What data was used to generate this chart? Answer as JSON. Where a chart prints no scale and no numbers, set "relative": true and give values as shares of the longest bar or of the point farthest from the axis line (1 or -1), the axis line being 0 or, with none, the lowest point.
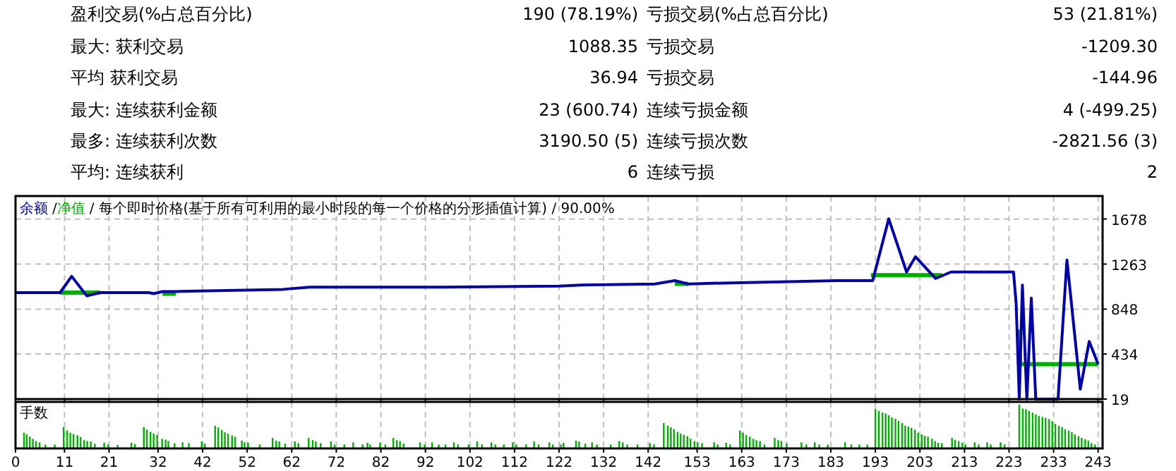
{
  "chart_data": [
    {
      "type": "other",
      "annotations": [
        "盈利交易(%占总百分比)",
        "190 (78.19%)",
        "亏损交易(%占总百分比)",
        "53 (21.81%)",
        "最大: 获利交易",
        "1088.35",
        "亏损交易",
        "-1209.30",
        "平均 获利交易",
        "36.94",
        "亏损交易",
        "-144.96",
        "最大: 连续获利金额",
        "23 (600.74)",
        "连续亏损金额",
        "4 (-499.25)",
        "最多: 连续获利次数",
        "3190.50 (5)",
        "连续亏损次数",
        "-2821.56 (3)",
        "平均: 连续获利",
        "6",
        "连续亏损",
        "2"
      ]
    },
    {
      "type": "line",
      "title": "每个即时价格(基于所有可利用的最小时段的每一个价格的分形插值计算) / 90.00%",
      "legend": "top left",
      "grid": true,
      "tick_labels": "y",
      "xlim": [
        0,
        244
      ],
      "xticks": [
        0,
        11,
        21,
        32,
        42,
        52,
        62,
        72,
        82,
        92,
        102,
        112,
        122,
        132,
        142,
        153,
        163,
        173,
        183,
        193,
        203,
        213,
        223,
        233,
        243
      ],
      "ylim": [
        19,
        1890
      ],
      "yticks": [
        19,
        434,
        848,
        1263,
        1678
      ],
      "annotations": [
        "/",
        "/"
      ],
      "series": [
        {
          "name": "余额",
          "color": "#0000a8",
          "x": [
            0,
            10,
            12.6,
            16,
            19,
            30,
            31,
            33,
            36,
            60,
            66,
            96,
            122,
            127,
            143.5,
            148,
            151,
            160.6,
            184.5,
            192.4,
            196,
            200,
            202,
            206.5,
            210,
            224,
            224.6,
            225.3,
            226,
            227,
            228,
            229,
            234,
            236,
            239,
            241,
            243
          ],
          "values": [
            1000,
            1000,
            1150,
            970,
            1000,
            1000,
            990,
            1010,
            1010,
            1030,
            1050,
            1050,
            1060,
            1070,
            1080,
            1110,
            1080,
            1090,
            1110,
            1110,
            1680,
            1190,
            1330,
            1130,
            1190,
            1190,
            900,
            19,
            1070,
            19,
            950,
            19,
            19,
            1300,
            110,
            550,
            340
          ]
        },
        {
          "name": "净值",
          "color": "#00b000",
          "x": [
            10,
            19
          ],
          "values": [
            1000,
            1000
          ]
        },
        {
          "color": "#00b000",
          "x": [
            33,
            36
          ],
          "values": [
            990,
            990
          ]
        },
        {
          "color": "#00b000",
          "x": [
            148,
            151
          ],
          "values": [
            1080,
            1080
          ]
        },
        {
          "color": "#00b000",
          "x": [
            192,
            208
          ],
          "values": [
            1160,
            1160
          ]
        },
        {
          "color": "#00b000",
          "x": [
            225,
            225.5,
            243
          ],
          "values": [
            660,
            340,
            340
          ]
        }
      ]
    },
    {
      "type": "bar",
      "title": "手数",
      "relative": true,
      "grid": "x",
      "tick_labels": "x",
      "color": "#00b000",
      "xlim": [
        0,
        244
      ],
      "xticks": [
        0,
        11,
        21,
        32,
        42,
        52,
        62,
        72,
        82,
        92,
        102,
        112,
        122,
        132,
        142,
        153,
        163,
        173,
        183,
        193,
        203,
        213,
        223,
        233,
        243
      ],
      "x": [
        1.9,
        2.5,
        3.2,
        3.9,
        4.6,
        5.4,
        6.7,
        8.8,
        10.8,
        11.6,
        12.3,
        13.0,
        13.9,
        14.6,
        15.4,
        16.1,
        16.9,
        17.8,
        19.9,
        20.8,
        22.9,
        26.0,
        26.8,
        28.8,
        29.5,
        30.3,
        31.0,
        31.8,
        32.9,
        33.7,
        34.3,
        35.7,
        37.5,
        38.9,
        41.8,
        42.5,
        44.8,
        45.5,
        46.3,
        47.0,
        47.7,
        48.6,
        49.3,
        50.8,
        51.4,
        52.2,
        54.8,
        57.7,
        58.5,
        59.2,
        60.5,
        62.7,
        63.5,
        65.8,
        66.7,
        67.4,
        68.5,
        70.8,
        71.6,
        73.8,
        75.8,
        77.9,
        79.0,
        79.6,
        81.8,
        83.0,
        84.8,
        85.6,
        86.3,
        87.1,
        90.8,
        91.8,
        93.5,
        95.0,
        96.5,
        98.4,
        99.3,
        101.7,
        103.6,
        104.7,
        106.8,
        107.7,
        109.6,
        111.6,
        112.4,
        114.6,
        116.4,
        117.4,
        119.8,
        120.6,
        122.4,
        123.0,
        125.8,
        126.5,
        127.9,
        129.4,
        130.5,
        133.6,
        135.5,
        136.3,
        137.3,
        139.6,
        142.4,
        143.3,
        145.5,
        146.4,
        147.1,
        147.8,
        148.6,
        149.3,
        150.0,
        150.8,
        151.5,
        152.4,
        153.1,
        154.1,
        156.8,
        157.6,
        159.5,
        160.4,
        162.6,
        163.3,
        164.0,
        164.8,
        165.6,
        166.3,
        167.1,
        168.1,
        170.4,
        171.2,
        171.9,
        173.1,
        176.4,
        177.5,
        179.4,
        180.4,
        182.3,
        186.2,
        187.6,
        189.4,
        191.2,
        193.0,
        193.8,
        194.6,
        195.3,
        196.0,
        196.7,
        197.5,
        198.2,
        199.0,
        199.7,
        200.4,
        201.1,
        201.9,
        202.6,
        203.4,
        204.1,
        204.8,
        205.7,
        206.4,
        207.1,
        207.9,
        210.2,
        210.9,
        211.7,
        212.5,
        213.2,
        215.3,
        216.2,
        218.1,
        218.9,
        221.1,
        222.0,
        225.3,
        226.1,
        226.8,
        227.5,
        228.3,
        229.0,
        229.7,
        230.5,
        231.2,
        232.0,
        232.7,
        233.4,
        234.2,
        234.9,
        235.6,
        236.4,
        237.1,
        237.8,
        238.6,
        239.3,
        240.1,
        240.8,
        241.5,
        242.3
      ],
      "values": [
        0.36,
        0.32,
        0.27,
        0.22,
        0.17,
        0.14,
        0.09,
        0.09,
        0.49,
        0.41,
        0.36,
        0.33,
        0.3,
        0.26,
        0.19,
        0.17,
        0.16,
        0.11,
        0.13,
        0.09,
        0.08,
        0.13,
        0.1,
        0.49,
        0.43,
        0.38,
        0.34,
        0.31,
        0.22,
        0.2,
        0.17,
        0.12,
        0.14,
        0.12,
        0.16,
        0.11,
        0.52,
        0.48,
        0.42,
        0.37,
        0.34,
        0.3,
        0.27,
        0.18,
        0.14,
        0.13,
        0.09,
        0.24,
        0.18,
        0.16,
        0.11,
        0.16,
        0.12,
        0.24,
        0.19,
        0.16,
        0.12,
        0.16,
        0.09,
        0.09,
        0.14,
        0.09,
        0.13,
        0.09,
        0.13,
        0.09,
        0.24,
        0.19,
        0.17,
        0.11,
        0.14,
        0.09,
        0.14,
        0.09,
        0.09,
        0.14,
        0.09,
        0.09,
        0.16,
        0.09,
        0.14,
        0.09,
        0.09,
        0.14,
        0.09,
        0.09,
        0.16,
        0.09,
        0.14,
        0.09,
        0.09,
        0.13,
        0.18,
        0.16,
        0.11,
        0.14,
        0.09,
        0.09,
        0.17,
        0.14,
        0.09,
        0.09,
        0.12,
        0.09,
        0.58,
        0.52,
        0.48,
        0.44,
        0.38,
        0.34,
        0.31,
        0.28,
        0.22,
        0.17,
        0.14,
        0.12,
        0.14,
        0.09,
        0.13,
        0.09,
        0.41,
        0.36,
        0.31,
        0.27,
        0.22,
        0.19,
        0.17,
        0.09,
        0.24,
        0.19,
        0.17,
        0.11,
        0.14,
        0.09,
        0.14,
        0.09,
        0.09,
        0.14,
        0.09,
        0.09,
        0.09,
        0.91,
        0.86,
        0.82,
        0.8,
        0.76,
        0.71,
        0.68,
        0.63,
        0.58,
        0.52,
        0.5,
        0.47,
        0.43,
        0.36,
        0.32,
        0.29,
        0.27,
        0.22,
        0.17,
        0.13,
        0.12,
        0.24,
        0.2,
        0.17,
        0.13,
        0.09,
        0.14,
        0.09,
        0.14,
        0.09,
        0.14,
        0.09,
        1,
        0.91,
        0.9,
        0.86,
        0.82,
        0.78,
        0.74,
        0.72,
        0.7,
        0.67,
        0.62,
        0.56,
        0.52,
        0.49,
        0.44,
        0.41,
        0.37,
        0.32,
        0.28,
        0.24,
        0.21,
        0.18,
        0.12,
        0.09
      ]
    }
  ]
}
